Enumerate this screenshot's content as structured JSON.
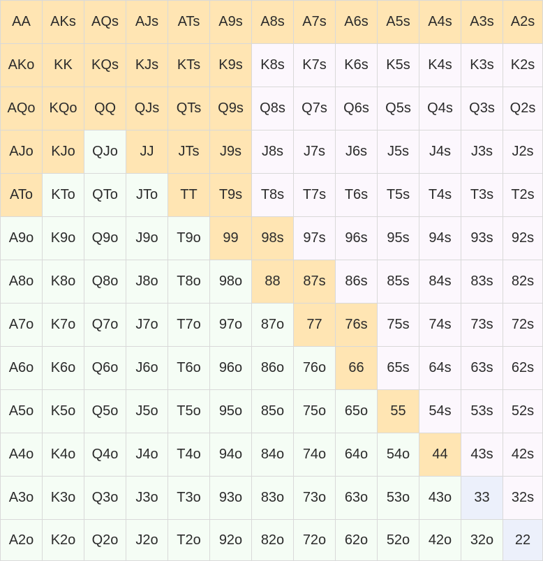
{
  "colors": {
    "raise": "#ffe5b3",
    "fold_suited": "#fcf7fd",
    "fold_offsuit": "#f5fdf5",
    "fold_pair": "#ecf0fb",
    "grid_line": "#d9d9d9",
    "text": "#2b2b2b"
  },
  "grid": {
    "rows": [
      {
        "cells": [
          {
            "hand": "AA",
            "action": "raise"
          },
          {
            "hand": "AKs",
            "action": "raise"
          },
          {
            "hand": "AQs",
            "action": "raise"
          },
          {
            "hand": "AJs",
            "action": "raise"
          },
          {
            "hand": "ATs",
            "action": "raise"
          },
          {
            "hand": "A9s",
            "action": "raise"
          },
          {
            "hand": "A8s",
            "action": "raise"
          },
          {
            "hand": "A7s",
            "action": "raise"
          },
          {
            "hand": "A6s",
            "action": "raise"
          },
          {
            "hand": "A5s",
            "action": "raise"
          },
          {
            "hand": "A4s",
            "action": "raise"
          },
          {
            "hand": "A3s",
            "action": "raise"
          },
          {
            "hand": "A2s",
            "action": "raise"
          }
        ]
      },
      {
        "cells": [
          {
            "hand": "AKo",
            "action": "raise"
          },
          {
            "hand": "KK",
            "action": "raise"
          },
          {
            "hand": "KQs",
            "action": "raise"
          },
          {
            "hand": "KJs",
            "action": "raise"
          },
          {
            "hand": "KTs",
            "action": "raise"
          },
          {
            "hand": "K9s",
            "action": "raise"
          },
          {
            "hand": "K8s",
            "action": "fold"
          },
          {
            "hand": "K7s",
            "action": "fold"
          },
          {
            "hand": "K6s",
            "action": "fold"
          },
          {
            "hand": "K5s",
            "action": "fold"
          },
          {
            "hand": "K4s",
            "action": "fold"
          },
          {
            "hand": "K3s",
            "action": "fold"
          },
          {
            "hand": "K2s",
            "action": "fold"
          }
        ]
      },
      {
        "cells": [
          {
            "hand": "AQo",
            "action": "raise"
          },
          {
            "hand": "KQo",
            "action": "raise"
          },
          {
            "hand": "QQ",
            "action": "raise"
          },
          {
            "hand": "QJs",
            "action": "raise"
          },
          {
            "hand": "QTs",
            "action": "raise"
          },
          {
            "hand": "Q9s",
            "action": "raise"
          },
          {
            "hand": "Q8s",
            "action": "fold"
          },
          {
            "hand": "Q7s",
            "action": "fold"
          },
          {
            "hand": "Q6s",
            "action": "fold"
          },
          {
            "hand": "Q5s",
            "action": "fold"
          },
          {
            "hand": "Q4s",
            "action": "fold"
          },
          {
            "hand": "Q3s",
            "action": "fold"
          },
          {
            "hand": "Q2s",
            "action": "fold"
          }
        ]
      },
      {
        "cells": [
          {
            "hand": "AJo",
            "action": "raise"
          },
          {
            "hand": "KJo",
            "action": "raise"
          },
          {
            "hand": "QJo",
            "action": "fold"
          },
          {
            "hand": "JJ",
            "action": "raise"
          },
          {
            "hand": "JTs",
            "action": "raise"
          },
          {
            "hand": "J9s",
            "action": "raise"
          },
          {
            "hand": "J8s",
            "action": "fold"
          },
          {
            "hand": "J7s",
            "action": "fold"
          },
          {
            "hand": "J6s",
            "action": "fold"
          },
          {
            "hand": "J5s",
            "action": "fold"
          },
          {
            "hand": "J4s",
            "action": "fold"
          },
          {
            "hand": "J3s",
            "action": "fold"
          },
          {
            "hand": "J2s",
            "action": "fold"
          }
        ]
      },
      {
        "cells": [
          {
            "hand": "ATo",
            "action": "raise"
          },
          {
            "hand": "KTo",
            "action": "fold"
          },
          {
            "hand": "QTo",
            "action": "fold"
          },
          {
            "hand": "JTo",
            "action": "fold"
          },
          {
            "hand": "TT",
            "action": "raise"
          },
          {
            "hand": "T9s",
            "action": "raise"
          },
          {
            "hand": "T8s",
            "action": "fold"
          },
          {
            "hand": "T7s",
            "action": "fold"
          },
          {
            "hand": "T6s",
            "action": "fold"
          },
          {
            "hand": "T5s",
            "action": "fold"
          },
          {
            "hand": "T4s",
            "action": "fold"
          },
          {
            "hand": "T3s",
            "action": "fold"
          },
          {
            "hand": "T2s",
            "action": "fold"
          }
        ]
      },
      {
        "cells": [
          {
            "hand": "A9o",
            "action": "fold"
          },
          {
            "hand": "K9o",
            "action": "fold"
          },
          {
            "hand": "Q9o",
            "action": "fold"
          },
          {
            "hand": "J9o",
            "action": "fold"
          },
          {
            "hand": "T9o",
            "action": "fold"
          },
          {
            "hand": "99",
            "action": "raise"
          },
          {
            "hand": "98s",
            "action": "raise"
          },
          {
            "hand": "97s",
            "action": "fold"
          },
          {
            "hand": "96s",
            "action": "fold"
          },
          {
            "hand": "95s",
            "action": "fold"
          },
          {
            "hand": "94s",
            "action": "fold"
          },
          {
            "hand": "93s",
            "action": "fold"
          },
          {
            "hand": "92s",
            "action": "fold"
          }
        ]
      },
      {
        "cells": [
          {
            "hand": "A8o",
            "action": "fold"
          },
          {
            "hand": "K8o",
            "action": "fold"
          },
          {
            "hand": "Q8o",
            "action": "fold"
          },
          {
            "hand": "J8o",
            "action": "fold"
          },
          {
            "hand": "T8o",
            "action": "fold"
          },
          {
            "hand": "98o",
            "action": "fold"
          },
          {
            "hand": "88",
            "action": "raise"
          },
          {
            "hand": "87s",
            "action": "raise"
          },
          {
            "hand": "86s",
            "action": "fold"
          },
          {
            "hand": "85s",
            "action": "fold"
          },
          {
            "hand": "84s",
            "action": "fold"
          },
          {
            "hand": "83s",
            "action": "fold"
          },
          {
            "hand": "82s",
            "action": "fold"
          }
        ]
      },
      {
        "cells": [
          {
            "hand": "A7o",
            "action": "fold"
          },
          {
            "hand": "K7o",
            "action": "fold"
          },
          {
            "hand": "Q7o",
            "action": "fold"
          },
          {
            "hand": "J7o",
            "action": "fold"
          },
          {
            "hand": "T7o",
            "action": "fold"
          },
          {
            "hand": "97o",
            "action": "fold"
          },
          {
            "hand": "87o",
            "action": "fold"
          },
          {
            "hand": "77",
            "action": "raise"
          },
          {
            "hand": "76s",
            "action": "raise"
          },
          {
            "hand": "75s",
            "action": "fold"
          },
          {
            "hand": "74s",
            "action": "fold"
          },
          {
            "hand": "73s",
            "action": "fold"
          },
          {
            "hand": "72s",
            "action": "fold"
          }
        ]
      },
      {
        "cells": [
          {
            "hand": "A6o",
            "action": "fold"
          },
          {
            "hand": "K6o",
            "action": "fold"
          },
          {
            "hand": "Q6o",
            "action": "fold"
          },
          {
            "hand": "J6o",
            "action": "fold"
          },
          {
            "hand": "T6o",
            "action": "fold"
          },
          {
            "hand": "96o",
            "action": "fold"
          },
          {
            "hand": "86o",
            "action": "fold"
          },
          {
            "hand": "76o",
            "action": "fold"
          },
          {
            "hand": "66",
            "action": "raise"
          },
          {
            "hand": "65s",
            "action": "fold"
          },
          {
            "hand": "64s",
            "action": "fold"
          },
          {
            "hand": "63s",
            "action": "fold"
          },
          {
            "hand": "62s",
            "action": "fold"
          }
        ]
      },
      {
        "cells": [
          {
            "hand": "A5o",
            "action": "fold"
          },
          {
            "hand": "K5o",
            "action": "fold"
          },
          {
            "hand": "Q5o",
            "action": "fold"
          },
          {
            "hand": "J5o",
            "action": "fold"
          },
          {
            "hand": "T5o",
            "action": "fold"
          },
          {
            "hand": "95o",
            "action": "fold"
          },
          {
            "hand": "85o",
            "action": "fold"
          },
          {
            "hand": "75o",
            "action": "fold"
          },
          {
            "hand": "65o",
            "action": "fold"
          },
          {
            "hand": "55",
            "action": "raise"
          },
          {
            "hand": "54s",
            "action": "fold"
          },
          {
            "hand": "53s",
            "action": "fold"
          },
          {
            "hand": "52s",
            "action": "fold"
          }
        ]
      },
      {
        "cells": [
          {
            "hand": "A4o",
            "action": "fold"
          },
          {
            "hand": "K4o",
            "action": "fold"
          },
          {
            "hand": "Q4o",
            "action": "fold"
          },
          {
            "hand": "J4o",
            "action": "fold"
          },
          {
            "hand": "T4o",
            "action": "fold"
          },
          {
            "hand": "94o",
            "action": "fold"
          },
          {
            "hand": "84o",
            "action": "fold"
          },
          {
            "hand": "74o",
            "action": "fold"
          },
          {
            "hand": "64o",
            "action": "fold"
          },
          {
            "hand": "54o",
            "action": "fold"
          },
          {
            "hand": "44",
            "action": "raise"
          },
          {
            "hand": "43s",
            "action": "fold"
          },
          {
            "hand": "42s",
            "action": "fold"
          }
        ]
      },
      {
        "cells": [
          {
            "hand": "A3o",
            "action": "fold"
          },
          {
            "hand": "K3o",
            "action": "fold"
          },
          {
            "hand": "Q3o",
            "action": "fold"
          },
          {
            "hand": "J3o",
            "action": "fold"
          },
          {
            "hand": "T3o",
            "action": "fold"
          },
          {
            "hand": "93o",
            "action": "fold"
          },
          {
            "hand": "83o",
            "action": "fold"
          },
          {
            "hand": "73o",
            "action": "fold"
          },
          {
            "hand": "63o",
            "action": "fold"
          },
          {
            "hand": "53o",
            "action": "fold"
          },
          {
            "hand": "43o",
            "action": "fold"
          },
          {
            "hand": "33",
            "action": "fold"
          },
          {
            "hand": "32s",
            "action": "fold"
          }
        ]
      },
      {
        "cells": [
          {
            "hand": "A2o",
            "action": "fold"
          },
          {
            "hand": "K2o",
            "action": "fold"
          },
          {
            "hand": "Q2o",
            "action": "fold"
          },
          {
            "hand": "J2o",
            "action": "fold"
          },
          {
            "hand": "T2o",
            "action": "fold"
          },
          {
            "hand": "92o",
            "action": "fold"
          },
          {
            "hand": "82o",
            "action": "fold"
          },
          {
            "hand": "72o",
            "action": "fold"
          },
          {
            "hand": "62o",
            "action": "fold"
          },
          {
            "hand": "52o",
            "action": "fold"
          },
          {
            "hand": "42o",
            "action": "fold"
          },
          {
            "hand": "32o",
            "action": "fold"
          },
          {
            "hand": "22",
            "action": "fold"
          }
        ]
      }
    ]
  }
}
